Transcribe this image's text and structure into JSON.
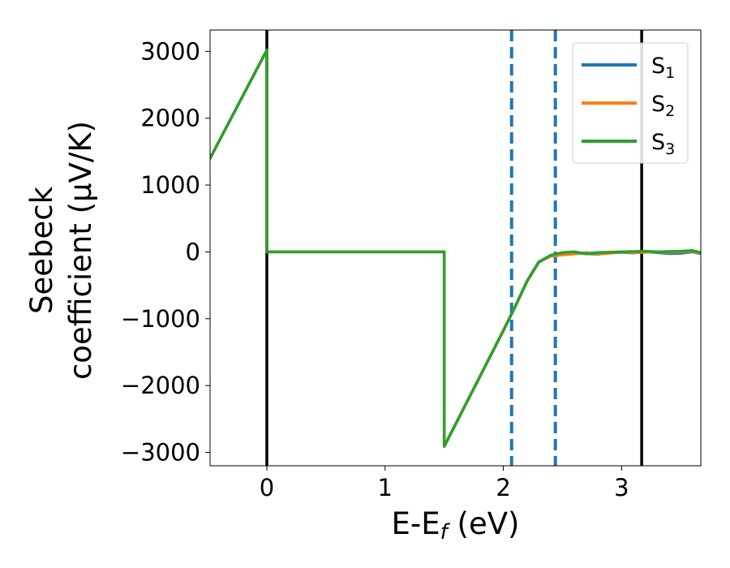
{
  "chart_data": {
    "type": "line",
    "xlabel": "E-E",
    "xlabel_sub": "f",
    "xlabel_unit": " (eV)",
    "ylabel_line1": "Seebeck",
    "ylabel_line2": "coefficient  (μV/K)",
    "xlim": [
      -0.48,
      3.67
    ],
    "ylim": [
      -3200,
      3320
    ],
    "xticks": [
      0,
      1,
      2,
      3
    ],
    "xtick_labels": [
      "0",
      "1",
      "2",
      "3"
    ],
    "yticks": [
      -3000,
      -2000,
      -1000,
      0,
      1000,
      2000,
      3000
    ],
    "ytick_labels": [
      "−3000",
      "−2000",
      "−1000",
      "0",
      "1000",
      "2000",
      "3000"
    ],
    "grid": false,
    "legend_position": "top-right",
    "vlines": [
      {
        "x": 0.0,
        "style": "solid",
        "color": "#000000"
      },
      {
        "x": 3.17,
        "style": "solid",
        "color": "#000000"
      },
      {
        "x": 2.07,
        "style": "dashed",
        "color": "#1f77b4"
      },
      {
        "x": 2.44,
        "style": "dashed",
        "color": "#1f77b4"
      }
    ],
    "series": [
      {
        "name": "S",
        "subscript": "1",
        "color": "#1f77b4",
        "points": [
          [
            -0.48,
            1400
          ],
          [
            0.0,
            3020
          ],
          [
            0.0,
            0
          ],
          [
            1.5,
            0
          ],
          [
            1.5,
            -2910
          ],
          [
            2.0,
            -1180
          ],
          [
            2.1,
            -820
          ],
          [
            2.2,
            -440
          ],
          [
            2.3,
            -150
          ],
          [
            2.4,
            -60
          ],
          [
            2.5,
            -30
          ],
          [
            2.6,
            -10
          ],
          [
            2.7,
            -25
          ],
          [
            2.8,
            -35
          ],
          [
            2.9,
            -15
          ],
          [
            3.0,
            -5
          ],
          [
            3.1,
            -15
          ],
          [
            3.2,
            0
          ],
          [
            3.3,
            -10
          ],
          [
            3.4,
            -25
          ],
          [
            3.5,
            -20
          ],
          [
            3.6,
            0
          ],
          [
            3.67,
            -25
          ]
        ]
      },
      {
        "name": "S",
        "subscript": "2",
        "color": "#ff7f0e",
        "points": [
          [
            -0.48,
            1400
          ],
          [
            0.0,
            3020
          ],
          [
            0.0,
            0
          ],
          [
            1.5,
            0
          ],
          [
            1.5,
            -2910
          ],
          [
            2.0,
            -1180
          ],
          [
            2.1,
            -820
          ],
          [
            2.2,
            -440
          ],
          [
            2.3,
            -150
          ],
          [
            2.4,
            -65
          ],
          [
            2.5,
            -45
          ],
          [
            2.6,
            -30
          ],
          [
            2.7,
            -10
          ],
          [
            2.8,
            -30
          ],
          [
            2.9,
            -20
          ],
          [
            3.0,
            0
          ],
          [
            3.1,
            -10
          ],
          [
            3.2,
            -5
          ],
          [
            3.3,
            0
          ],
          [
            3.4,
            -5
          ],
          [
            3.5,
            0
          ],
          [
            3.6,
            10
          ],
          [
            3.67,
            -15
          ]
        ]
      },
      {
        "name": "S",
        "subscript": "3",
        "color": "#2ca02c",
        "points": [
          [
            -0.48,
            1400
          ],
          [
            0.0,
            3020
          ],
          [
            0.0,
            0
          ],
          [
            1.5,
            0
          ],
          [
            1.5,
            -2910
          ],
          [
            2.0,
            -1180
          ],
          [
            2.1,
            -820
          ],
          [
            2.2,
            -440
          ],
          [
            2.3,
            -150
          ],
          [
            2.4,
            -50
          ],
          [
            2.5,
            -10
          ],
          [
            2.6,
            0
          ],
          [
            2.7,
            -30
          ],
          [
            2.8,
            -10
          ],
          [
            2.9,
            -5
          ],
          [
            3.0,
            0
          ],
          [
            3.1,
            5
          ],
          [
            3.2,
            10
          ],
          [
            3.3,
            0
          ],
          [
            3.4,
            5
          ],
          [
            3.5,
            10
          ],
          [
            3.6,
            20
          ],
          [
            3.67,
            -10
          ]
        ]
      }
    ]
  }
}
